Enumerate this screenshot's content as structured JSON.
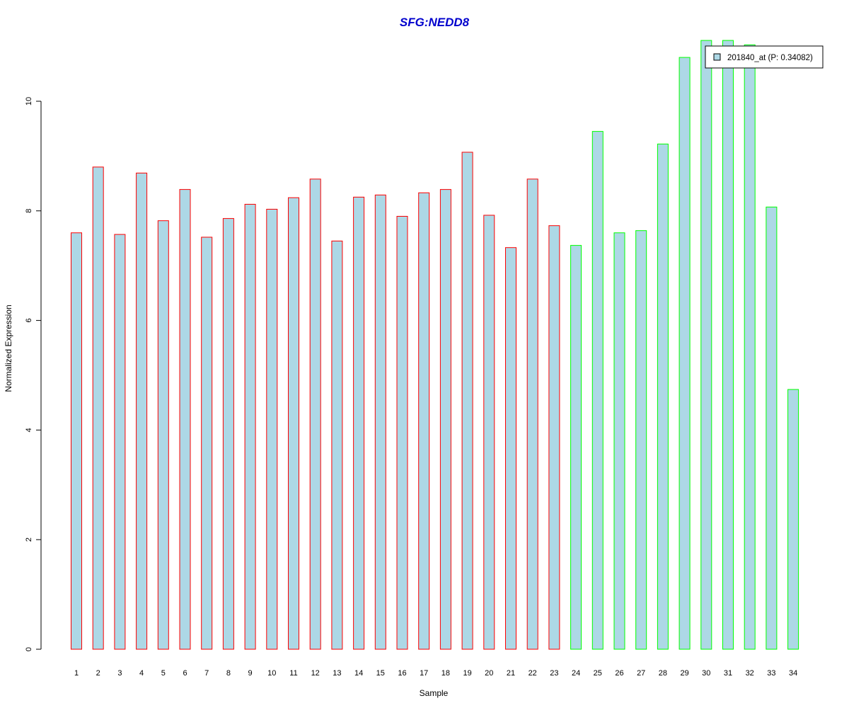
{
  "chart_data": {
    "type": "bar",
    "title": "SFG:NEDD8",
    "xlabel": "Sample",
    "ylabel": "Normalized Expression",
    "categories": [
      "1",
      "2",
      "3",
      "4",
      "5",
      "6",
      "7",
      "8",
      "9",
      "10",
      "11",
      "12",
      "13",
      "14",
      "15",
      "16",
      "17",
      "18",
      "19",
      "20",
      "21",
      "22",
      "23",
      "24",
      "25",
      "26",
      "27",
      "28",
      "29",
      "30",
      "31",
      "32",
      "33",
      "34"
    ],
    "series": [
      {
        "name": "201840_at (P: 0.34082)",
        "values": [
          7.6,
          8.8,
          7.57,
          8.69,
          7.82,
          8.39,
          7.52,
          7.86,
          8.12,
          8.03,
          8.24,
          8.58,
          7.45,
          8.25,
          8.29,
          7.9,
          8.33,
          8.39,
          9.07,
          7.92,
          7.33,
          8.58,
          7.73,
          7.37,
          9.45,
          7.6,
          7.64,
          9.22,
          10.8,
          11.11,
          11.11,
          11.03,
          8.07,
          4.74
        ]
      }
    ],
    "group_index": [
      0,
      0,
      0,
      0,
      0,
      0,
      0,
      0,
      0,
      0,
      0,
      0,
      0,
      0,
      0,
      0,
      0,
      0,
      0,
      0,
      0,
      0,
      0,
      1,
      1,
      1,
      1,
      1,
      1,
      1,
      1,
      1,
      1,
      1
    ],
    "group_border_colors": [
      "#ff0000",
      "#00ff00"
    ],
    "bar_fill": "#add8e6",
    "title_color": "#0000cd",
    "ylim": [
      0,
      11.11
    ],
    "yticks": [
      0,
      2,
      4,
      6,
      8,
      10
    ],
    "grid": false,
    "legend_position": "top-right"
  }
}
